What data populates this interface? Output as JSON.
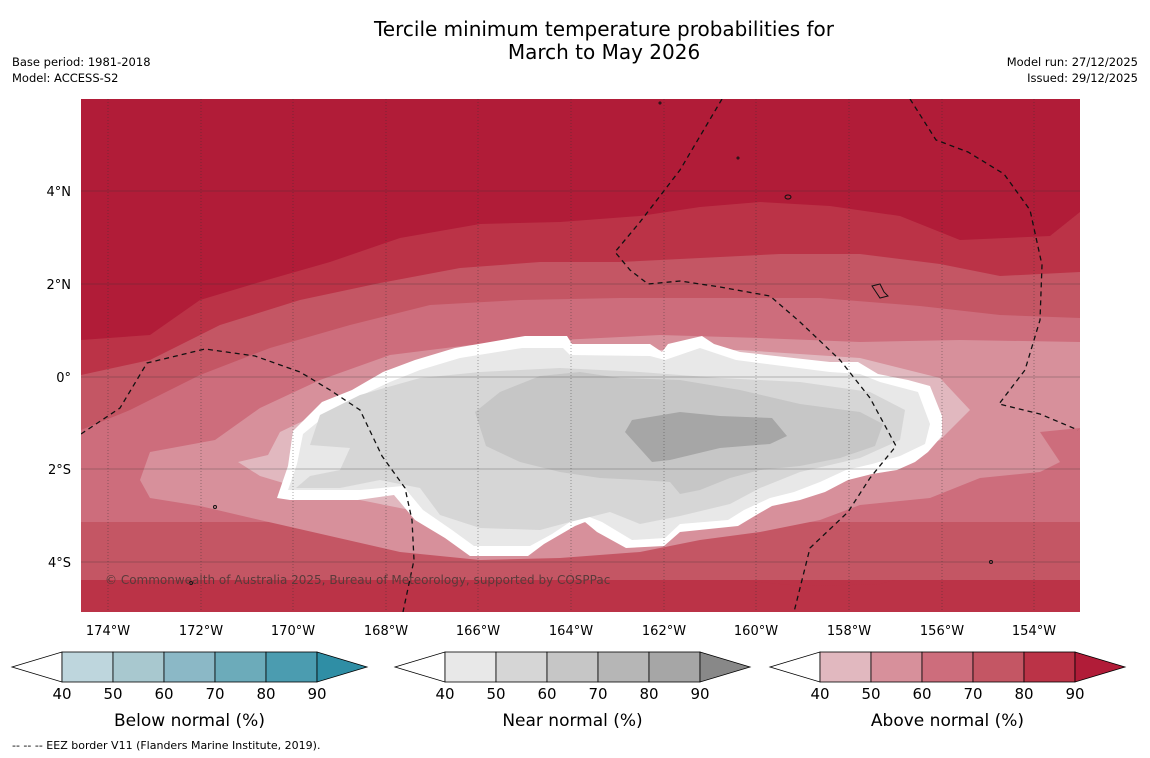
{
  "title": {
    "line1": "Tercile minimum temperature probabilities for",
    "line2": "March to May 2026"
  },
  "meta": {
    "base_period": "Base period: 1981-2018",
    "model": "Model: ACCESS-S2",
    "model_run": "Model run: 27/12/2025",
    "issued": "Issued: 29/12/2025"
  },
  "map": {
    "lon_labels": [
      "174°W",
      "172°W",
      "170°W",
      "168°W",
      "166°W",
      "164°W",
      "162°W",
      "160°W",
      "158°W",
      "156°W",
      "154°W"
    ],
    "lat_labels": [
      "4°N",
      "2°N",
      "0°",
      "2°S",
      "4°S"
    ],
    "copyright": "© Commonwealth of Australia 2025, Bureau of Meteorology, supported by COSPPac",
    "colors": {
      "above": [
        "#e1b8bf",
        "#d7909b",
        "#cd6d7c",
        "#c45664",
        "#bb3347",
        "#b11c38"
      ],
      "near": [
        "#e8e8e8",
        "#d6d6d6",
        "#c6c6c6",
        "#b6b6b6",
        "#a6a6a6",
        "#888888"
      ],
      "below": [
        "#bed6dd",
        "#a8c8cf",
        "#8bb8c6",
        "#6cabba",
        "#4b9cb0",
        "#2f8ea5"
      ]
    }
  },
  "colorbars": [
    {
      "name": "below",
      "title": "Below normal (%)",
      "ticks": [
        "40",
        "50",
        "60",
        "70",
        "80",
        "90"
      ]
    },
    {
      "name": "near",
      "title": "Near normal (%)",
      "ticks": [
        "40",
        "50",
        "60",
        "70",
        "80",
        "90"
      ]
    },
    {
      "name": "above",
      "title": "Above normal (%)",
      "ticks": [
        "40",
        "50",
        "60",
        "70",
        "80",
        "90"
      ]
    }
  ],
  "footnote": "-- -- -- EEZ border V11 (Flanders Marine Institute, 2019)."
}
